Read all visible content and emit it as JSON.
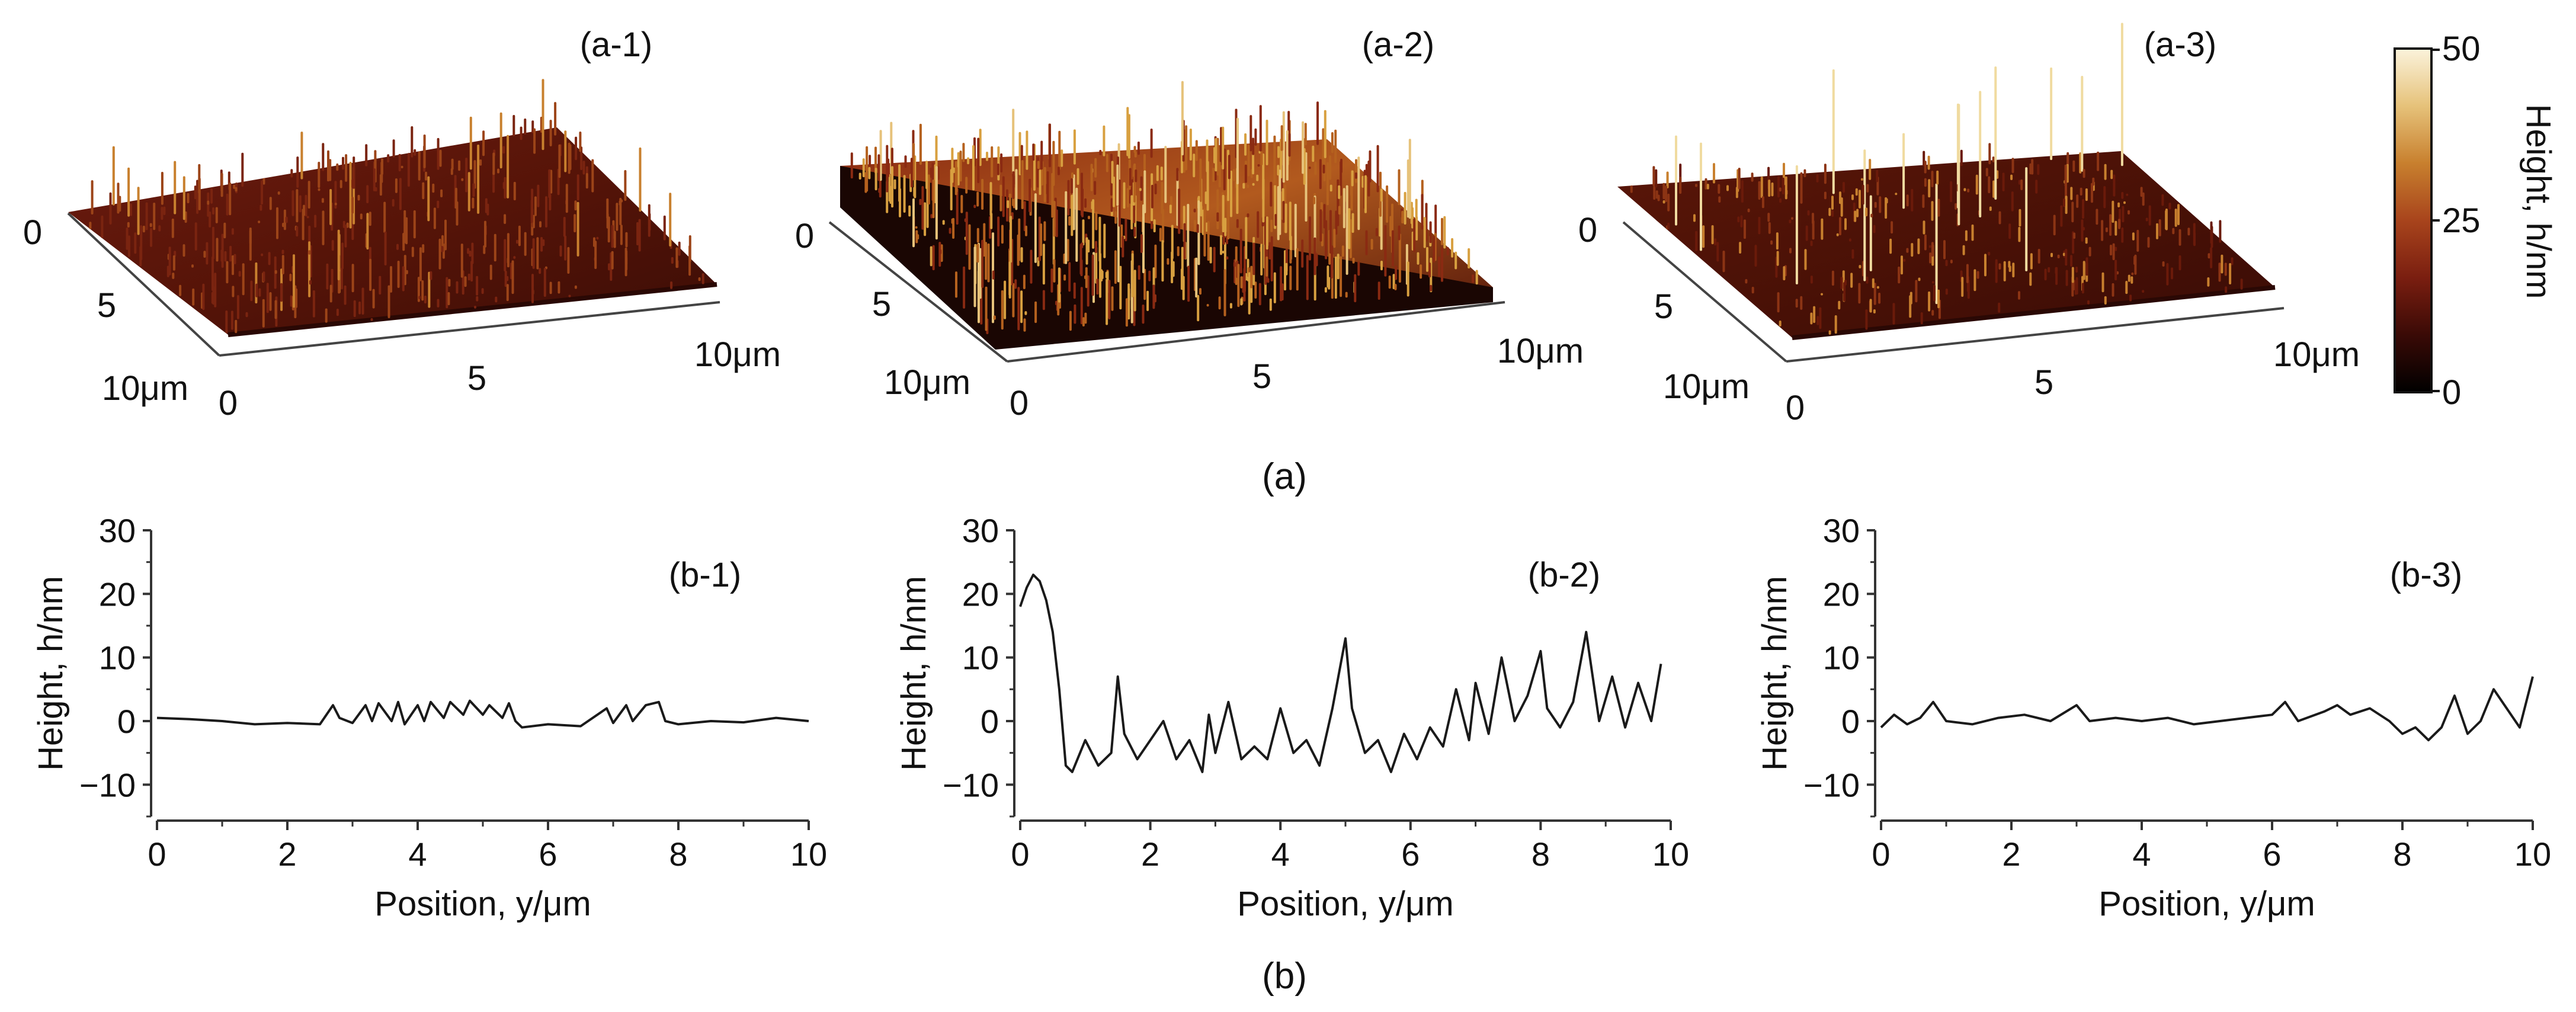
{
  "figure": {
    "section_a_label": "(a)",
    "section_b_label": "(b)"
  },
  "surfaces": [
    {
      "label": "(a-1)",
      "y_ticks": [
        "0",
        "5",
        "10μm"
      ],
      "x_ticks": [
        "0",
        "5",
        "10μm"
      ]
    },
    {
      "label": "(a-2)",
      "y_ticks": [
        "0",
        "5",
        "10μm"
      ],
      "x_ticks": [
        "0",
        "5",
        "10μm"
      ]
    },
    {
      "label": "(a-3)",
      "y_ticks": [
        "0",
        "5",
        "10μm"
      ],
      "x_ticks": [
        "0",
        "5",
        "10μm"
      ]
    }
  ],
  "colorbar": {
    "label": "Height, h/nm",
    "ticks": [
      "50",
      "25",
      "0"
    ],
    "min": 0,
    "max": 50,
    "colors": [
      "#000000",
      "#3a0a06",
      "#7a1e10",
      "#a8441c",
      "#c8802e",
      "#e6c27a",
      "#fbf3dc"
    ]
  },
  "chart_data": [
    {
      "type": "line",
      "title": "(b-1)",
      "xlabel": "Position, y/μm",
      "ylabel": "Height, h/nm",
      "xlim": [
        0,
        10
      ],
      "ylim": [
        -15,
        30
      ],
      "xticks": [
        "0",
        "2",
        "4",
        "6",
        "8",
        "10"
      ],
      "yticks": [
        "−10",
        "0",
        "10",
        "20",
        "30"
      ],
      "series": [
        {
          "color": "#1a1a1a",
          "x": [
            0,
            0.5,
            1,
            1.5,
            2,
            2.5,
            2.7,
            2.8,
            3,
            3.2,
            3.3,
            3.4,
            3.6,
            3.7,
            3.8,
            4,
            4.1,
            4.2,
            4.4,
            4.5,
            4.7,
            4.8,
            5,
            5.1,
            5.3,
            5.4,
            5.5,
            5.6,
            6,
            6.5,
            6.9,
            7,
            7.2,
            7.3,
            7.5,
            7.7,
            7.8,
            8,
            8.5,
            9,
            9.5,
            10
          ],
          "y": [
            0.5,
            0.3,
            0,
            -0.5,
            -0.3,
            -0.5,
            2.5,
            0.5,
            -0.3,
            2.5,
            0,
            2.8,
            0,
            3,
            -0.5,
            2.5,
            0,
            3,
            0.5,
            3,
            1,
            3.2,
            1,
            2.5,
            0.5,
            2.8,
            0,
            -1,
            -0.5,
            -0.8,
            2,
            -0.3,
            2.5,
            0,
            2.5,
            3,
            0,
            -0.5,
            0,
            -0.2,
            0.5,
            0
          ]
        }
      ]
    },
    {
      "type": "line",
      "title": "(b-2)",
      "xlabel": "Position, y/μm",
      "ylabel": "Height, h/nm",
      "xlim": [
        0,
        10
      ],
      "ylim": [
        -15,
        30
      ],
      "xticks": [
        "0",
        "2",
        "4",
        "6",
        "8",
        "10"
      ],
      "yticks": [
        "−10",
        "0",
        "10",
        "20",
        "30"
      ],
      "series": [
        {
          "color": "#1a1a1a",
          "x": [
            0,
            0.1,
            0.2,
            0.3,
            0.4,
            0.5,
            0.6,
            0.7,
            0.8,
            1,
            1.2,
            1.4,
            1.5,
            1.6,
            1.8,
            2,
            2.2,
            2.4,
            2.6,
            2.8,
            2.9,
            3,
            3.2,
            3.4,
            3.6,
            3.8,
            4,
            4.2,
            4.4,
            4.6,
            4.8,
            5,
            5.1,
            5.3,
            5.5,
            5.7,
            5.9,
            6.1,
            6.3,
            6.5,
            6.7,
            6.9,
            7,
            7.2,
            7.4,
            7.6,
            7.8,
            8,
            8.1,
            8.3,
            8.5,
            8.7,
            8.9,
            9.1,
            9.3,
            9.5,
            9.7,
            9.85
          ],
          "y": [
            18,
            21,
            23,
            22,
            19,
            14,
            5,
            -7,
            -8,
            -3,
            -7,
            -5,
            7,
            -2,
            -6,
            -3,
            0,
            -6,
            -3,
            -8,
            1,
            -5,
            3,
            -6,
            -4,
            -6,
            2,
            -5,
            -3,
            -7,
            2,
            13,
            2,
            -5,
            -3,
            -8,
            -2,
            -6,
            -1,
            -4,
            5,
            -3,
            6,
            -2,
            10,
            0,
            4,
            11,
            2,
            -1,
            3,
            14,
            0,
            7,
            -1,
            6,
            0,
            9
          ]
        }
      ]
    },
    {
      "type": "line",
      "title": "(b-3)",
      "xlabel": "Position, y/μm",
      "ylabel": "Height, h/nm",
      "xlim": [
        0,
        10
      ],
      "ylim": [
        -15,
        30
      ],
      "xticks": [
        "0",
        "2",
        "4",
        "6",
        "8",
        "10"
      ],
      "yticks": [
        "−10",
        "0",
        "10",
        "20",
        "30"
      ],
      "series": [
        {
          "color": "#1a1a1a",
          "x": [
            0,
            0.2,
            0.4,
            0.6,
            0.8,
            1,
            1.4,
            1.8,
            2.2,
            2.6,
            3,
            3.2,
            3.6,
            4,
            4.4,
            4.8,
            5.2,
            5.6,
            6,
            6.2,
            6.4,
            6.8,
            7,
            7.2,
            7.5,
            7.8,
            8,
            8.2,
            8.4,
            8.6,
            8.8,
            9,
            9.2,
            9.4,
            9.6,
            9.8,
            10
          ],
          "y": [
            -1,
            1,
            -0.5,
            0.5,
            3,
            0,
            -0.5,
            0.5,
            1,
            0,
            2.5,
            0,
            0.5,
            0,
            0.5,
            -0.5,
            0,
            0.5,
            1,
            3,
            0,
            1.5,
            2.5,
            1,
            2,
            0,
            -2,
            -1,
            -3,
            -1,
            4,
            -2,
            0,
            5,
            2,
            -1,
            7
          ]
        }
      ]
    }
  ]
}
